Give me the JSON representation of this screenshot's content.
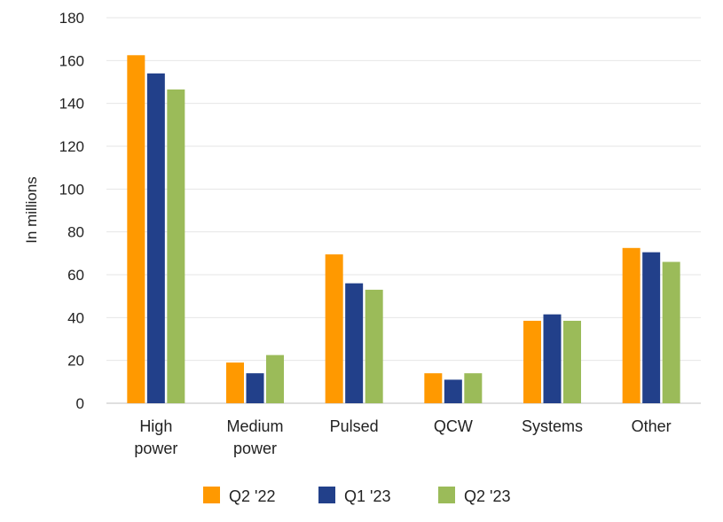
{
  "chart_data": {
    "type": "bar",
    "title": "",
    "xlabel": "",
    "ylabel": "In millions",
    "ylim": [
      0,
      180
    ],
    "yticks": [
      0,
      20,
      40,
      60,
      80,
      100,
      120,
      140,
      160,
      180
    ],
    "grid": true,
    "legend_position": "bottom",
    "categories": [
      [
        "High",
        "power"
      ],
      [
        "Medium",
        "power"
      ],
      [
        "Pulsed"
      ],
      [
        "QCW"
      ],
      [
        "Systems"
      ],
      [
        "Other"
      ]
    ],
    "series": [
      {
        "name": "Q2 '22",
        "color": "#FF9900",
        "values": [
          162.5,
          19,
          69.5,
          14,
          38.5,
          72.5
        ]
      },
      {
        "name": "Q1 '23",
        "color": "#22408A",
        "values": [
          154,
          14,
          56,
          11,
          41.5,
          70.5
        ]
      },
      {
        "name": "Q2 '23",
        "color": "#9BBB59",
        "values": [
          146.5,
          22.5,
          53,
          14,
          38.5,
          66
        ]
      }
    ]
  }
}
